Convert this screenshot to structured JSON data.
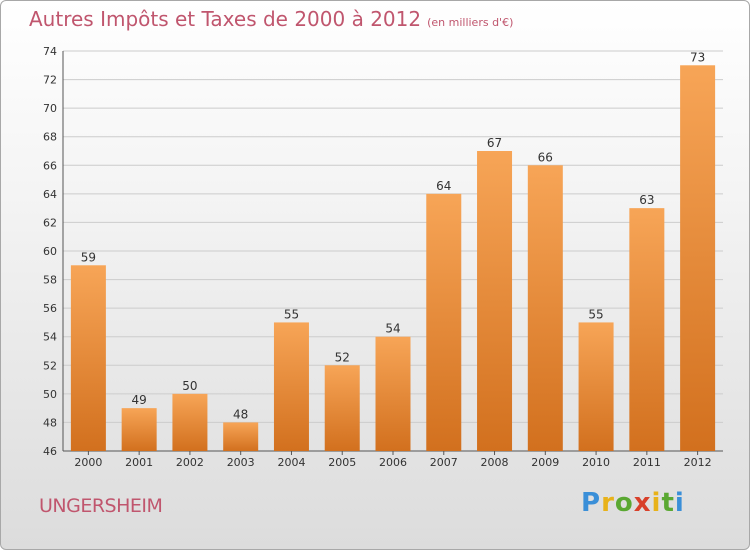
{
  "title": "Autres Impôts et Taxes de 2000 à 2012",
  "subtitle": "(en milliers d'€)",
  "city": "UNGERSHEIM",
  "logo": {
    "text": "Proxiti",
    "letters": [
      {
        "char": "P",
        "color": "#3a8fd8"
      },
      {
        "char": "r",
        "color": "#e8b21a"
      },
      {
        "char": "o",
        "color": "#5aa832"
      },
      {
        "char": "x",
        "color": "#d8402a"
      },
      {
        "char": "i",
        "color": "#e8b21a"
      },
      {
        "char": "t",
        "color": "#5aa832"
      },
      {
        "char": "i",
        "color": "#3a8fd8"
      }
    ]
  },
  "colors": {
    "title": "#c0566e",
    "bar_top": "#f7a557",
    "bar_bottom": "#d2701e",
    "grid": "#cccccc"
  },
  "chart_data": {
    "type": "bar",
    "title": "Autres Impôts et Taxes de 2000 à 2012",
    "subtitle": "(en milliers d'€)",
    "categories": [
      "2000",
      "2001",
      "2002",
      "2003",
      "2004",
      "2005",
      "2006",
      "2007",
      "2008",
      "2009",
      "2010",
      "2011",
      "2012"
    ],
    "values": [
      59,
      49,
      50,
      48,
      55,
      52,
      54,
      64,
      67,
      66,
      55,
      63,
      73
    ],
    "ylim": [
      46,
      74
    ],
    "yticks": [
      46,
      48,
      50,
      52,
      54,
      56,
      58,
      60,
      62,
      64,
      66,
      68,
      70,
      72,
      74
    ],
    "grid": true,
    "data_labels": true
  }
}
